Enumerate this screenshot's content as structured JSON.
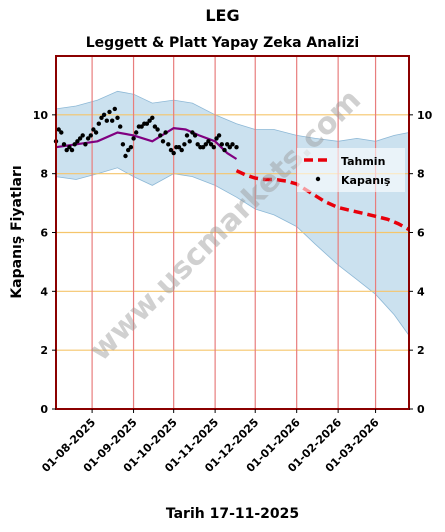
{
  "header": {
    "title": "LEG",
    "subtitle": "Leggett & Platt Yapay Zeka Analizi"
  },
  "watermark": "www.uscmarkets.com",
  "chart_data": {
    "type": "line",
    "title": "Leggett & Platt Yapay Zeka Analizi",
    "xlabel": "Tarih 17-11-2025",
    "ylabel": "Kapanış Fiyatları",
    "xlim": [
      "2025-07-05",
      "2026-03-26"
    ],
    "ylim": [
      0,
      12
    ],
    "yticks": [
      0,
      2,
      4,
      6,
      8,
      10
    ],
    "xticks": [
      "01-08-2025",
      "01-09-2025",
      "01-10-2025",
      "01-11-2025",
      "01-12-2025",
      "01-01-2026",
      "01-02-2026",
      "01-03-2026"
    ],
    "grid": true,
    "legend_position": "right",
    "colors": {
      "band": "#b9d7ea",
      "band_edge": "#8db8d6",
      "trend": "#800080",
      "forecast": "#e8000b",
      "points": "#000000",
      "hgrid": "#f5c56b",
      "vgrid": "#e87d7d",
      "frame": "#8b0000"
    },
    "series": [
      {
        "name": "Kapanış",
        "style": "points",
        "x": [
          "2025-07-05",
          "2025-07-07",
          "2025-07-09",
          "2025-07-11",
          "2025-07-13",
          "2025-07-15",
          "2025-07-17",
          "2025-07-19",
          "2025-07-21",
          "2025-07-23",
          "2025-07-25",
          "2025-07-27",
          "2025-07-29",
          "2025-07-31",
          "2025-08-02",
          "2025-08-04",
          "2025-08-06",
          "2025-08-08",
          "2025-08-10",
          "2025-08-12",
          "2025-08-14",
          "2025-08-16",
          "2025-08-18",
          "2025-08-20",
          "2025-08-22",
          "2025-08-24",
          "2025-08-26",
          "2025-08-28",
          "2025-08-30",
          "2025-09-01",
          "2025-09-03",
          "2025-09-05",
          "2025-09-07",
          "2025-09-09",
          "2025-09-11",
          "2025-09-13",
          "2025-09-15",
          "2025-09-17",
          "2025-09-19",
          "2025-09-21",
          "2025-09-23",
          "2025-09-25",
          "2025-09-27",
          "2025-09-29",
          "2025-10-01",
          "2025-10-03",
          "2025-10-05",
          "2025-10-07",
          "2025-10-09",
          "2025-10-11",
          "2025-10-13",
          "2025-10-15",
          "2025-10-17",
          "2025-10-19",
          "2025-10-21",
          "2025-10-23",
          "2025-10-25",
          "2025-10-27",
          "2025-10-29",
          "2025-10-31",
          "2025-11-02",
          "2025-11-04",
          "2025-11-06",
          "2025-11-08",
          "2025-11-10",
          "2025-11-12",
          "2025-11-14",
          "2025-11-17"
        ],
        "y": [
          9.1,
          9.5,
          9.4,
          9.0,
          8.8,
          8.9,
          8.8,
          9.0,
          9.1,
          9.2,
          9.3,
          9.0,
          9.2,
          9.3,
          9.5,
          9.4,
          9.7,
          9.9,
          10.0,
          9.8,
          10.1,
          9.8,
          10.2,
          9.9,
          9.6,
          9.0,
          8.6,
          8.8,
          8.9,
          9.2,
          9.4,
          9.6,
          9.6,
          9.7,
          9.7,
          9.8,
          9.9,
          9.6,
          9.5,
          9.3,
          9.1,
          9.4,
          9.0,
          8.8,
          8.7,
          8.9,
          8.9,
          8.8,
          9.0,
          9.3,
          9.1,
          9.4,
          9.3,
          9.0,
          8.9,
          8.9,
          9.0,
          9.1,
          9.0,
          8.9,
          9.2,
          9.3,
          9.0,
          8.8,
          9.0,
          8.9,
          9.0,
          8.9
        ]
      },
      {
        "name": "",
        "style": "trend",
        "x": [
          "2025-07-05",
          "2025-07-20",
          "2025-08-05",
          "2025-08-20",
          "2025-09-01",
          "2025-09-15",
          "2025-10-01",
          "2025-10-10",
          "2025-10-20",
          "2025-11-01",
          "2025-11-10",
          "2025-11-17"
        ],
        "y": [
          8.9,
          9.0,
          9.1,
          9.4,
          9.3,
          9.1,
          9.55,
          9.5,
          9.3,
          9.1,
          8.7,
          8.5
        ]
      },
      {
        "name": "Tahmin",
        "style": "forecast",
        "x": [
          "2025-11-17",
          "2025-11-24",
          "2025-12-01",
          "2025-12-08",
          "2025-12-16",
          "2025-12-24",
          "2026-01-01",
          "2026-01-08",
          "2026-01-15",
          "2026-01-22",
          "2026-02-01",
          "2026-02-10",
          "2026-02-20",
          "2026-03-01",
          "2026-03-10",
          "2026-03-18",
          "2026-03-26"
        ],
        "y": [
          8.1,
          7.95,
          7.85,
          7.8,
          7.8,
          7.75,
          7.65,
          7.45,
          7.25,
          7.05,
          6.85,
          6.75,
          6.65,
          6.55,
          6.45,
          6.3,
          6.1
        ]
      },
      {
        "name": "",
        "style": "band",
        "x": [
          "2025-07-05",
          "2025-07-20",
          "2025-08-05",
          "2025-08-20",
          "2025-09-01",
          "2025-09-15",
          "2025-10-01",
          "2025-10-15",
          "2025-11-01",
          "2025-11-17",
          "2025-12-01",
          "2025-12-15",
          "2026-01-01",
          "2026-01-15",
          "2026-02-01",
          "2026-02-15",
          "2026-03-01",
          "2026-03-15",
          "2026-03-26"
        ],
        "upper": [
          10.2,
          10.3,
          10.5,
          10.8,
          10.7,
          10.4,
          10.5,
          10.4,
          10.0,
          9.7,
          9.5,
          9.5,
          9.3,
          9.2,
          9.1,
          9.2,
          9.1,
          9.3,
          9.4
        ],
        "lower": [
          7.9,
          7.8,
          8.0,
          8.2,
          7.9,
          7.6,
          8.0,
          7.9,
          7.6,
          7.2,
          6.8,
          6.6,
          6.2,
          5.6,
          4.9,
          4.4,
          3.9,
          3.2,
          2.5
        ]
      }
    ]
  }
}
